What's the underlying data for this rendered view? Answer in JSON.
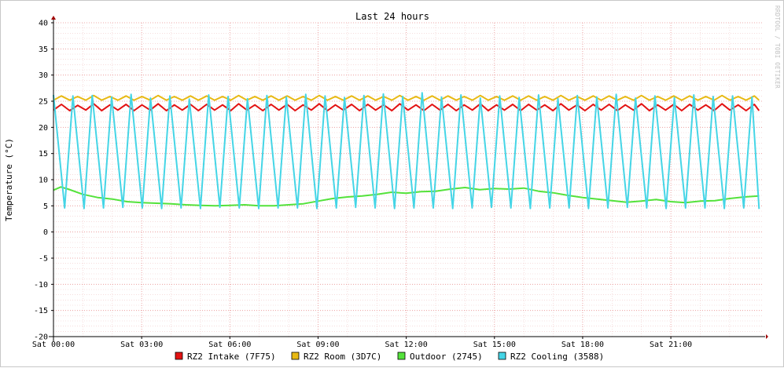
{
  "chart_data": {
    "type": "line",
    "title": "Last 24 hours",
    "ylabel": "Temperature (°C)",
    "xlabel": "",
    "watermark": "RRDTOOL / TOBI OETIKER",
    "ylim": [
      -20,
      40
    ],
    "ytick_labels": [
      "-20",
      "-15",
      "-10",
      "-5",
      "0",
      "5",
      "10",
      "15",
      "20",
      "25",
      "30",
      "35",
      "40"
    ],
    "xtick_labels": [
      "Sat 00:00",
      "Sat 03:00",
      "Sat 06:00",
      "Sat 09:00",
      "Sat 12:00",
      "Sat 15:00",
      "Sat 18:00",
      "Sat 21:00"
    ],
    "xlim_hours": [
      0,
      24.1
    ],
    "grid": true,
    "legend_position": "bottom",
    "series": [
      {
        "name": "RZ2 Intake (7F75)",
        "color": "#e31212",
        "x": [
          0,
          0.27,
          0.55,
          0.82,
          1.1,
          1.37,
          1.64,
          1.92,
          2.19,
          2.47,
          2.74,
          3.01,
          3.29,
          3.56,
          3.84,
          4.11,
          4.38,
          4.66,
          4.93,
          5.21,
          5.48,
          5.75,
          6.03,
          6.3,
          6.58,
          6.85,
          7.12,
          7.4,
          7.67,
          7.95,
          8.22,
          8.49,
          8.77,
          9.04,
          9.32,
          9.59,
          9.86,
          10.14,
          10.41,
          10.69,
          10.96,
          11.23,
          11.51,
          11.78,
          12.06,
          12.33,
          12.6,
          12.88,
          13.15,
          13.42,
          13.7,
          13.97,
          14.25,
          14.52,
          14.79,
          15.07,
          15.34,
          15.62,
          15.89,
          16.16,
          16.44,
          16.71,
          16.99,
          17.26,
          17.53,
          17.81,
          18.08,
          18.36,
          18.63,
          18.9,
          19.18,
          19.45,
          19.73,
          20,
          20.27,
          20.55,
          20.82,
          21.1,
          21.37,
          21.64,
          21.92,
          22.19,
          22.47,
          22.74,
          23.01,
          23.29,
          23.56,
          23.84,
          24
        ],
        "values": [
          23.3,
          24.4,
          23.2,
          24.2,
          23.3,
          24.5,
          23.2,
          24.3,
          23.3,
          24.4,
          23.2,
          24.3,
          23.3,
          24.5,
          23.2,
          24.3,
          23.3,
          24.4,
          23.2,
          24.4,
          23.3,
          24.3,
          23.2,
          24.5,
          23.3,
          24.3,
          23.2,
          24.4,
          23.3,
          24.4,
          23.2,
          24.3,
          23.3,
          24.5,
          23.2,
          24.3,
          23.3,
          24.4,
          23.2,
          24.4,
          23.3,
          24.3,
          23.2,
          24.5,
          23.3,
          24.3,
          23.2,
          24.4,
          23.3,
          24.4,
          23.2,
          24.3,
          23.3,
          24.5,
          23.2,
          24.3,
          23.3,
          24.4,
          23.2,
          24.4,
          23.3,
          24.3,
          23.2,
          24.5,
          23.3,
          24.3,
          23.2,
          24.4,
          23.3,
          24.4,
          23.2,
          24.3,
          23.3,
          24.5,
          23.2,
          24.3,
          23.3,
          24.4,
          23.2,
          24.4,
          23.3,
          24.3,
          23.2,
          24.5,
          23.3,
          24.3,
          23.2,
          24.4,
          23.2
        ]
      },
      {
        "name": "RZ2 Room (3D7C)",
        "color": "#e8b913",
        "x": [
          0,
          0.27,
          0.55,
          0.82,
          1.1,
          1.37,
          1.64,
          1.92,
          2.19,
          2.47,
          2.74,
          3.01,
          3.29,
          3.56,
          3.84,
          4.11,
          4.38,
          4.66,
          4.93,
          5.21,
          5.48,
          5.75,
          6.03,
          6.3,
          6.58,
          6.85,
          7.12,
          7.4,
          7.67,
          7.95,
          8.22,
          8.49,
          8.77,
          9.04,
          9.32,
          9.59,
          9.86,
          10.14,
          10.41,
          10.69,
          10.96,
          11.23,
          11.51,
          11.78,
          12.06,
          12.33,
          12.6,
          12.88,
          13.15,
          13.42,
          13.7,
          13.97,
          14.25,
          14.52,
          14.79,
          15.07,
          15.34,
          15.62,
          15.89,
          16.16,
          16.44,
          16.71,
          16.99,
          17.26,
          17.53,
          17.81,
          18.08,
          18.36,
          18.63,
          18.9,
          19.18,
          19.45,
          19.73,
          20,
          20.27,
          20.55,
          20.82,
          21.1,
          21.37,
          21.64,
          21.92,
          22.19,
          22.47,
          22.74,
          23.01,
          23.29,
          23.56,
          23.84,
          24
        ],
        "values": [
          25.2,
          26.0,
          25.2,
          25.9,
          25.2,
          26.1,
          25.2,
          25.9,
          25.2,
          26.0,
          25.2,
          25.9,
          25.2,
          26.1,
          25.2,
          25.9,
          25.2,
          26.0,
          25.2,
          26.0,
          25.2,
          25.9,
          25.2,
          26.1,
          25.2,
          25.9,
          25.2,
          26.0,
          25.2,
          26.0,
          25.2,
          25.9,
          25.2,
          26.1,
          25.2,
          25.9,
          25.2,
          26.0,
          25.2,
          26.0,
          25.2,
          25.9,
          25.2,
          26.1,
          25.2,
          25.9,
          25.2,
          26.0,
          25.2,
          26.0,
          25.2,
          25.9,
          25.2,
          26.1,
          25.2,
          25.9,
          25.2,
          26.0,
          25.2,
          26.0,
          25.2,
          25.9,
          25.2,
          26.1,
          25.2,
          25.9,
          25.2,
          26.0,
          25.2,
          26.0,
          25.2,
          25.9,
          25.2,
          26.1,
          25.2,
          25.9,
          25.2,
          26.0,
          25.2,
          26.0,
          25.2,
          25.9,
          25.2,
          26.1,
          25.2,
          25.9,
          25.2,
          26.0,
          25.2
        ]
      },
      {
        "name": "Outdoor (2745)",
        "color": "#54e23b",
        "x": [
          0,
          0.25,
          0.5,
          1,
          1.5,
          2,
          2.5,
          3,
          3.5,
          4,
          4.5,
          5,
          5.5,
          6,
          6.5,
          7,
          7.5,
          8,
          8.5,
          9,
          9.5,
          10,
          10.5,
          11,
          11.5,
          12,
          12.5,
          13,
          13.5,
          14,
          14.5,
          15,
          15.5,
          16,
          16.5,
          17,
          17.5,
          18,
          18.5,
          19,
          19.5,
          20,
          20.5,
          21,
          21.5,
          22,
          22.5,
          23,
          23.5,
          24
        ],
        "values": [
          8.0,
          8.6,
          8.2,
          7.2,
          6.6,
          6.3,
          5.8,
          5.6,
          5.5,
          5.4,
          5.2,
          5.1,
          5.0,
          5.1,
          5.2,
          5.0,
          5.0,
          5.2,
          5.4,
          5.9,
          6.4,
          6.7,
          6.9,
          7.2,
          7.6,
          7.4,
          7.7,
          7.8,
          8.2,
          8.5,
          8.1,
          8.3,
          8.2,
          8.4,
          7.8,
          7.5,
          7.0,
          6.6,
          6.3,
          6.0,
          5.7,
          5.9,
          6.2,
          5.8,
          5.6,
          5.9,
          6.0,
          6.4,
          6.7,
          6.9
        ]
      },
      {
        "name": "RZ2 Cooling (3588)",
        "color": "#45d5e6",
        "x": [
          0,
          0.38,
          0.66,
          1.04,
          1.32,
          1.7,
          1.98,
          2.36,
          2.64,
          3.02,
          3.3,
          3.68,
          3.96,
          4.34,
          4.62,
          5,
          5.28,
          5.66,
          5.94,
          6.32,
          6.6,
          6.98,
          7.26,
          7.64,
          7.92,
          8.3,
          8.58,
          8.96,
          9.24,
          9.62,
          9.9,
          10.28,
          10.56,
          10.94,
          11.22,
          11.6,
          11.88,
          12.26,
          12.54,
          12.92,
          13.2,
          13.58,
          13.86,
          14.24,
          14.52,
          14.9,
          15.18,
          15.56,
          15.84,
          16.22,
          16.5,
          16.88,
          17.16,
          17.54,
          17.82,
          18.2,
          18.48,
          18.86,
          19.14,
          19.52,
          19.8,
          20.18,
          20.46,
          20.84,
          21.12,
          21.5,
          21.78,
          22.16,
          22.44,
          22.82,
          23.1,
          23.48,
          23.76,
          24
        ],
        "values": [
          26.2,
          4.6,
          26.0,
          4.5,
          26.1,
          4.6,
          25.8,
          4.7,
          26.3,
          4.6,
          25.6,
          4.5,
          26.0,
          4.6,
          25.4,
          4.5,
          26.2,
          4.7,
          25.9,
          4.6,
          25.5,
          4.5,
          26.1,
          4.6,
          25.8,
          4.6,
          26.3,
          4.5,
          26.0,
          4.6,
          25.7,
          4.7,
          26.1,
          4.6,
          26.4,
          4.5,
          25.9,
          4.6,
          26.6,
          4.6,
          25.8,
          4.5,
          26.2,
          4.6,
          25.6,
          4.7,
          26.0,
          4.6,
          25.7,
          4.5,
          26.2,
          4.6,
          25.5,
          4.6,
          26.1,
          4.5,
          25.8,
          4.6,
          26.3,
          4.7,
          25.6,
          4.6,
          26.0,
          4.5,
          25.7,
          4.6,
          26.2,
          4.6,
          25.9,
          4.5,
          26.0,
          4.6,
          25.8,
          4.4
        ]
      }
    ]
  }
}
